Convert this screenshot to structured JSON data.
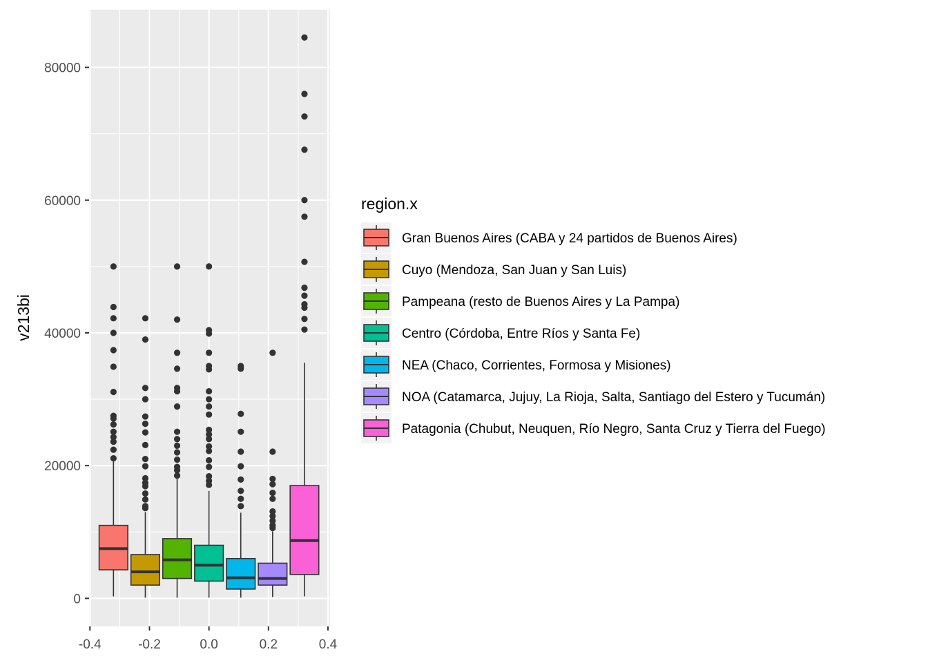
{
  "chart_data": {
    "type": "boxplot",
    "title": "",
    "xlabel": "",
    "ylabel": "v213bi",
    "xlim": [
      -0.403,
      0.407
    ],
    "ylim": [
      -4224,
      88694
    ],
    "x_ticks": [
      -0.4,
      -0.2,
      0.0,
      0.2,
      0.4
    ],
    "x_tick_labels": [
      "-0.4",
      "-0.2",
      "0.0",
      "0.2",
      "0.4"
    ],
    "y_ticks": [
      0,
      20000,
      40000,
      60000,
      80000
    ],
    "y_tick_labels": [
      "0",
      "20000",
      "40000",
      "60000",
      "80000"
    ],
    "grid": true,
    "legend": {
      "title": "region.x",
      "position": "right"
    },
    "series": [
      {
        "name": "Gran Buenos Aires (CABA y 24 partidos de Buenos Aires)",
        "color": "#F8766D",
        "x": -0.321,
        "whisker_low": 300,
        "q1": 4300,
        "median": 7500,
        "q3": 11000,
        "whisker_high": 20800,
        "outliers": [
          50000,
          43900,
          42200,
          40000,
          37400,
          34900,
          31100,
          27500,
          27100,
          26200,
          25100,
          24300,
          23600,
          22400,
          21100
        ]
      },
      {
        "name": "Cuyo (Mendoza, San Juan y San Luis)",
        "color": "#C49A00",
        "x": -0.214,
        "whisker_low": 100,
        "q1": 2000,
        "median": 4000,
        "q3": 6600,
        "whisker_high": 13000,
        "outliers": [
          42200,
          39000,
          31700,
          30000,
          27400,
          26300,
          25000,
          23100,
          21000,
          19900,
          18100,
          17400,
          16900,
          15800,
          14900,
          13900,
          13600
        ]
      },
      {
        "name": "Pampeana (resto de Buenos Aires y La Pampa)",
        "color": "#53B400",
        "x": -0.107,
        "whisker_low": 100,
        "q1": 3000,
        "median": 5800,
        "q3": 9000,
        "whisker_high": 18000,
        "outliers": [
          50000,
          42000,
          37000,
          34600,
          31700,
          31200,
          28900,
          25100,
          24000,
          23000,
          22000,
          20900,
          19800,
          19300,
          18500
        ]
      },
      {
        "name": "Centro (Córdoba, Entre Ríos y Santa Fe)",
        "color": "#00C094",
        "x": 0.0,
        "whisker_low": 100,
        "q1": 2600,
        "median": 5000,
        "q3": 8000,
        "whisker_high": 16200,
        "outliers": [
          50000,
          40400,
          39900,
          37000,
          35000,
          34500,
          31200,
          30000,
          28900,
          27700,
          25400,
          24700,
          24000,
          22900,
          22200,
          20800,
          19800,
          18400,
          17700,
          17100
        ]
      },
      {
        "name": "NEA (Chaco, Corrientes, Formosa y Misiones)",
        "color": "#00B6EB",
        "x": 0.107,
        "whisker_low": 100,
        "q1": 1400,
        "median": 3100,
        "q3": 6000,
        "whisker_high": 12900,
        "outliers": [
          35000,
          34600,
          27800,
          25100,
          22100,
          19900,
          17900,
          16200,
          15000,
          13900
        ]
      },
      {
        "name": "NOA (Catamarca, Jujuy, La Rioja, Salta, Santiago del Estero y Tucumán)",
        "color": "#A58AFF",
        "x": 0.214,
        "whisker_low": 200,
        "q1": 2000,
        "median": 3000,
        "q3": 5300,
        "whisker_high": 10100,
        "outliers": [
          37000,
          22100,
          18000,
          17200,
          15900,
          15000,
          13100,
          12400,
          11700,
          11000,
          10600
        ]
      },
      {
        "name": "Patagonia (Chubut, Neuquen, Río Negro, Santa Cruz y Tierra del Fuego)",
        "color": "#FB61D7",
        "x": 0.321,
        "whisker_low": 300,
        "q1": 3600,
        "median": 8700,
        "q3": 17000,
        "whisker_high": 35500,
        "outliers": [
          84500,
          76000,
          72600,
          67600,
          60000,
          57500,
          50700,
          46800,
          45600,
          44300,
          43800,
          42100,
          40500
        ]
      }
    ]
  },
  "colors": {
    "panel_background": "#EBEBEB",
    "grid_line": "#FFFFFF",
    "box_outline": "#333333",
    "legend_key_background": "#F2F2F2"
  }
}
